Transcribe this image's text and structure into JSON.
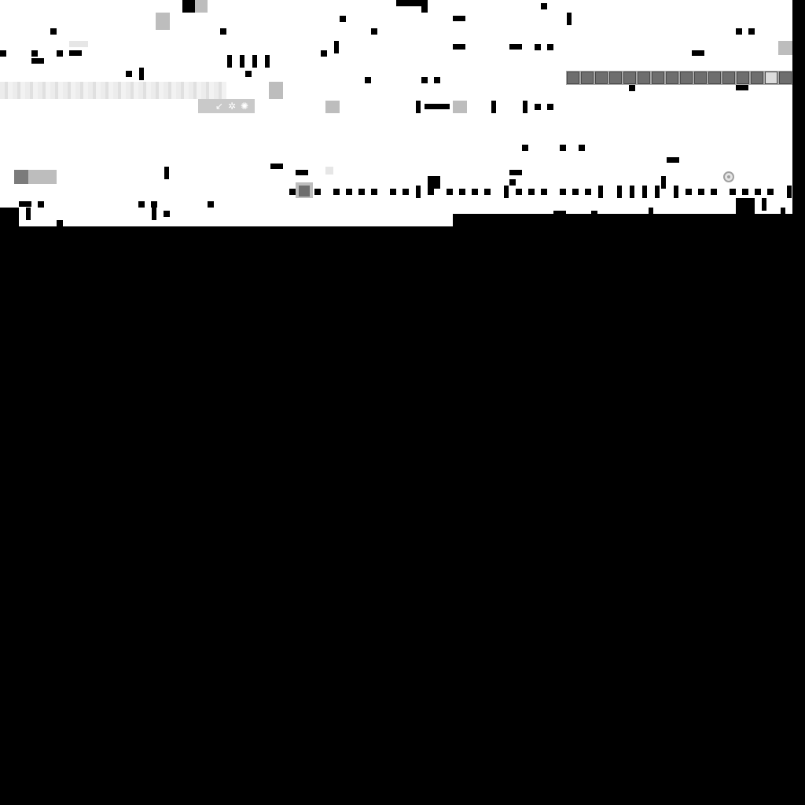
{
  "game": {
    "colors": {
      "background": "#000000",
      "map_floor": "#ffffff",
      "wall": "#000000",
      "item_light": "#bdbdbd",
      "item_dark": "#7b7b7b",
      "inventory_slot": "#6e6e6e",
      "inventory_selected": "#dcdcdc"
    },
    "inventory": {
      "slot_count": 16,
      "selected_index": 14
    },
    "icons": {
      "player": "player-icon",
      "portal": "spiral-portal-icon",
      "item_sprite": "item-sprite-icon"
    }
  }
}
